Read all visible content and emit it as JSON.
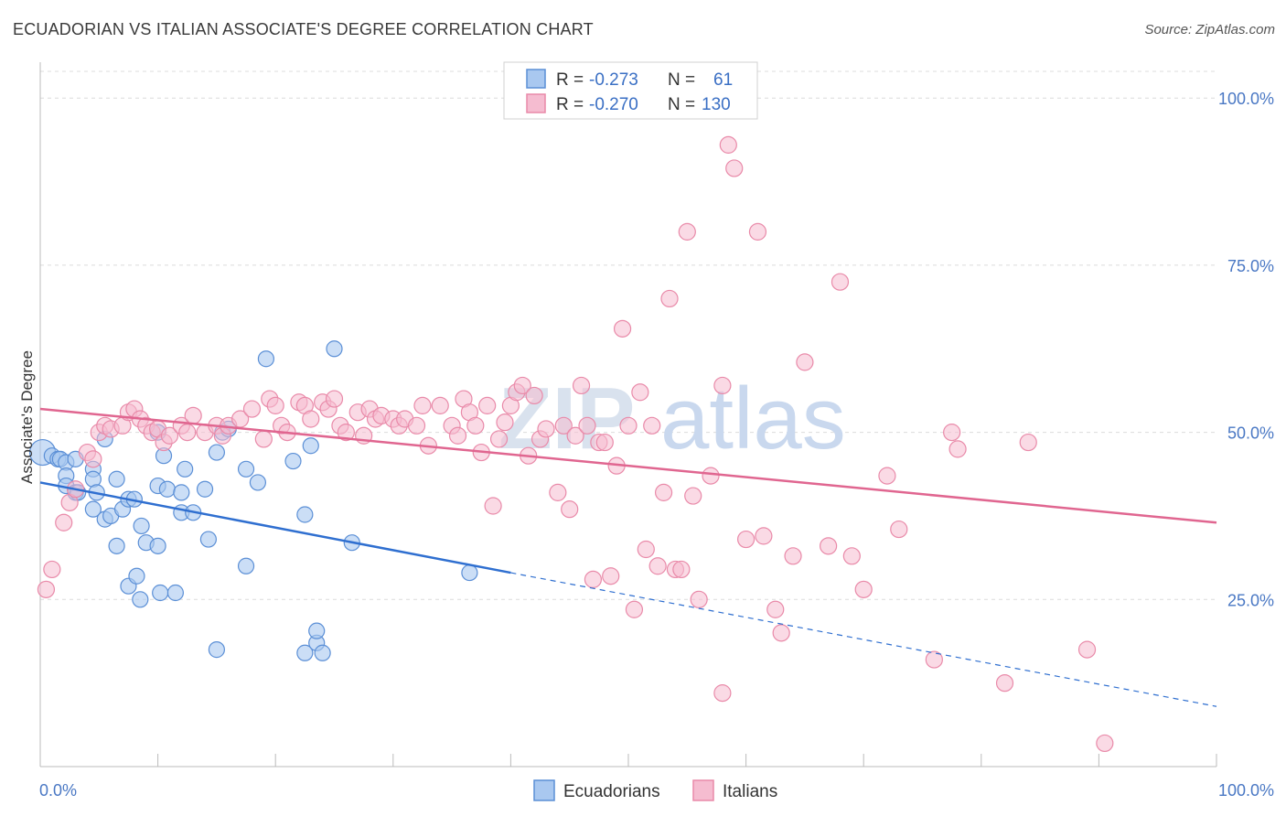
{
  "title": "ECUADORIAN VS ITALIAN ASSOCIATE'S DEGREE CORRELATION CHART",
  "source": "Source: ZipAtlas.com",
  "watermark": [
    "ZIP",
    "atlas"
  ],
  "colors": {
    "ecuadorians_fill": "#a9c8f0",
    "ecuadorians_stroke": "#5b8fd6",
    "ecuadorians_line": "#2f6fd0",
    "italians_fill": "#f5bcd0",
    "italians_stroke": "#e98aa9",
    "italians_line": "#e06690",
    "grid": "#dcdcdc",
    "tick_label": "#4a78c4"
  },
  "legend_box": {
    "rows": [
      {
        "r_label": "R =",
        "r_value": "-0.273",
        "n_label": "N =",
        "n_value": "61",
        "series": "ecuadorians"
      },
      {
        "r_label": "R =",
        "r_value": "-0.270",
        "n_label": "N =",
        "n_value": "130",
        "series": "italians"
      }
    ]
  },
  "chart_data": {
    "type": "scatter",
    "title": "ECUADORIAN VS ITALIAN ASSOCIATE'S DEGREE CORRELATION CHART",
    "xlabel": "",
    "ylabel": "Associate's Degree",
    "xlim": [
      0,
      100
    ],
    "ylim": [
      0,
      104
    ],
    "x_tick_labels": [
      {
        "value": 0,
        "label": "0.0%"
      },
      {
        "value": 100,
        "label": "100.0%"
      }
    ],
    "y_tick_labels": [
      {
        "value": 25,
        "label": "25.0%"
      },
      {
        "value": 50,
        "label": "50.0%"
      },
      {
        "value": 75,
        "label": "75.0%"
      },
      {
        "value": 100,
        "label": "100.0%"
      }
    ],
    "grid": true,
    "legend_position": "bottom",
    "series": [
      {
        "name": "Ecuadorians",
        "points": [
          [
            0.2,
            47
          ],
          [
            1.0,
            46.5
          ],
          [
            1.5,
            46
          ],
          [
            1.7,
            46
          ],
          [
            2.2,
            45.5
          ],
          [
            2.2,
            43.5
          ],
          [
            2.2,
            42
          ],
          [
            3.0,
            46
          ],
          [
            3.0,
            41
          ],
          [
            3.2,
            41
          ],
          [
            4.5,
            44.5
          ],
          [
            4.5,
            43
          ],
          [
            4.8,
            41
          ],
          [
            4.5,
            38.5
          ],
          [
            5.5,
            49
          ],
          [
            5.5,
            37
          ],
          [
            6.0,
            37.5
          ],
          [
            6.5,
            43
          ],
          [
            6.5,
            33
          ],
          [
            7.0,
            38.5
          ],
          [
            7.5,
            40
          ],
          [
            7.5,
            27
          ],
          [
            8.0,
            40
          ],
          [
            8.2,
            28.5
          ],
          [
            8.6,
            36
          ],
          [
            8.5,
            25
          ],
          [
            9.0,
            33.5
          ],
          [
            10,
            50
          ],
          [
            10,
            42
          ],
          [
            10,
            33
          ],
          [
            10.2,
            26
          ],
          [
            10.5,
            46.5
          ],
          [
            10.8,
            41.5
          ],
          [
            11.5,
            26
          ],
          [
            12,
            41
          ],
          [
            12,
            38
          ],
          [
            12.3,
            44.5
          ],
          [
            13,
            38
          ],
          [
            14,
            41.5
          ],
          [
            14.3,
            34
          ],
          [
            15,
            47
          ],
          [
            15,
            17.5
          ],
          [
            15.5,
            50
          ],
          [
            16,
            50.5
          ],
          [
            17.5,
            44.5
          ],
          [
            17.5,
            30
          ],
          [
            18.5,
            42.5
          ],
          [
            19.2,
            61
          ],
          [
            21.5,
            45.7
          ],
          [
            22.5,
            37.7
          ],
          [
            22.5,
            17
          ],
          [
            23,
            48
          ],
          [
            23.5,
            18.5
          ],
          [
            23.5,
            20.3
          ],
          [
            24,
            17
          ],
          [
            25,
            62.5
          ],
          [
            26.5,
            33.5
          ],
          [
            36.5,
            29
          ]
        ]
      },
      {
        "name": "Italians",
        "points": [
          [
            0.5,
            26.5
          ],
          [
            1,
            29.5
          ],
          [
            2,
            36.5
          ],
          [
            2.5,
            39.5
          ],
          [
            3,
            41.5
          ],
          [
            4,
            47
          ],
          [
            4.5,
            46
          ],
          [
            5,
            50
          ],
          [
            5.5,
            51
          ],
          [
            6,
            50.5
          ],
          [
            7,
            51
          ],
          [
            7.5,
            53
          ],
          [
            8,
            53.5
          ],
          [
            8.5,
            52
          ],
          [
            9,
            51
          ],
          [
            9.5,
            50
          ],
          [
            10,
            50.5
          ],
          [
            10.5,
            48.5
          ],
          [
            11,
            49.5
          ],
          [
            12,
            51
          ],
          [
            12.5,
            50
          ],
          [
            13,
            52.5
          ],
          [
            14,
            50
          ],
          [
            15,
            51
          ],
          [
            15.5,
            49.5
          ],
          [
            16,
            51
          ],
          [
            17,
            52
          ],
          [
            18,
            53.5
          ],
          [
            19,
            49
          ],
          [
            19.5,
            55
          ],
          [
            20,
            54
          ],
          [
            20.5,
            51
          ],
          [
            21,
            50
          ],
          [
            22,
            54.5
          ],
          [
            22.5,
            54
          ],
          [
            23,
            52
          ],
          [
            24,
            54.5
          ],
          [
            24.5,
            53.5
          ],
          [
            25,
            55
          ],
          [
            25.5,
            51
          ],
          [
            26,
            50
          ],
          [
            27,
            53
          ],
          [
            27.5,
            49.5
          ],
          [
            28,
            53.5
          ],
          [
            28.5,
            52
          ],
          [
            29,
            52.5
          ],
          [
            30,
            52
          ],
          [
            30.5,
            51
          ],
          [
            31,
            52
          ],
          [
            32,
            51
          ],
          [
            32.5,
            54
          ],
          [
            33,
            48
          ],
          [
            34,
            54
          ],
          [
            35,
            51
          ],
          [
            35.5,
            49.5
          ],
          [
            36,
            55
          ],
          [
            36.5,
            53
          ],
          [
            37,
            51
          ],
          [
            37.5,
            47
          ],
          [
            38,
            54
          ],
          [
            38.5,
            39
          ],
          [
            39,
            49
          ],
          [
            39.5,
            51.5
          ],
          [
            40,
            54
          ],
          [
            40.5,
            56
          ],
          [
            41,
            57
          ],
          [
            41.5,
            46.5
          ],
          [
            42,
            55.5
          ],
          [
            42.5,
            49
          ],
          [
            43,
            50.5
          ],
          [
            44,
            41
          ],
          [
            44.5,
            51
          ],
          [
            45,
            38.5
          ],
          [
            45.5,
            49.5
          ],
          [
            46,
            57
          ],
          [
            46.5,
            51
          ],
          [
            47,
            28
          ],
          [
            47.5,
            48.5
          ],
          [
            48,
            48.5
          ],
          [
            48.5,
            28.5
          ],
          [
            49,
            45
          ],
          [
            49.5,
            65.5
          ],
          [
            50,
            51
          ],
          [
            50.5,
            23.5
          ],
          [
            51,
            56
          ],
          [
            51.5,
            32.5
          ],
          [
            52,
            51
          ],
          [
            52.5,
            30
          ],
          [
            53,
            41
          ],
          [
            53.5,
            70
          ],
          [
            54,
            29.5
          ],
          [
            54.5,
            29.5
          ],
          [
            55,
            80
          ],
          [
            55.5,
            40.5
          ],
          [
            56,
            25
          ],
          [
            57,
            43.5
          ],
          [
            58,
            57
          ],
          [
            58,
            11
          ],
          [
            58.5,
            93
          ],
          [
            59,
            89.5
          ],
          [
            60,
            34
          ],
          [
            61,
            80
          ],
          [
            61.5,
            34.5
          ],
          [
            62.5,
            23.5
          ],
          [
            63,
            20
          ],
          [
            64,
            31.5
          ],
          [
            65,
            60.5
          ],
          [
            67,
            33
          ],
          [
            68,
            72.5
          ],
          [
            69,
            31.5
          ],
          [
            70,
            26.5
          ],
          [
            72,
            43.5
          ],
          [
            73,
            35.5
          ],
          [
            76,
            16
          ],
          [
            77.5,
            50
          ],
          [
            78,
            47.5
          ],
          [
            82,
            12.5
          ],
          [
            84,
            48.5
          ],
          [
            89,
            17.5
          ],
          [
            90.5,
            3.5
          ]
        ]
      }
    ],
    "trendlines": [
      {
        "series": "Ecuadorians",
        "solid": [
          [
            0,
            42.5
          ],
          [
            40,
            29
          ]
        ],
        "dashed": [
          [
            40,
            29
          ],
          [
            100,
            9
          ]
        ]
      },
      {
        "series": "Italians",
        "solid": [
          [
            0,
            53.5
          ],
          [
            100,
            36.5
          ]
        ]
      }
    ]
  },
  "bottom_legend": [
    {
      "label": "Ecuadorians",
      "series": "ecuadorians"
    },
    {
      "label": "Italians",
      "series": "italians"
    }
  ]
}
